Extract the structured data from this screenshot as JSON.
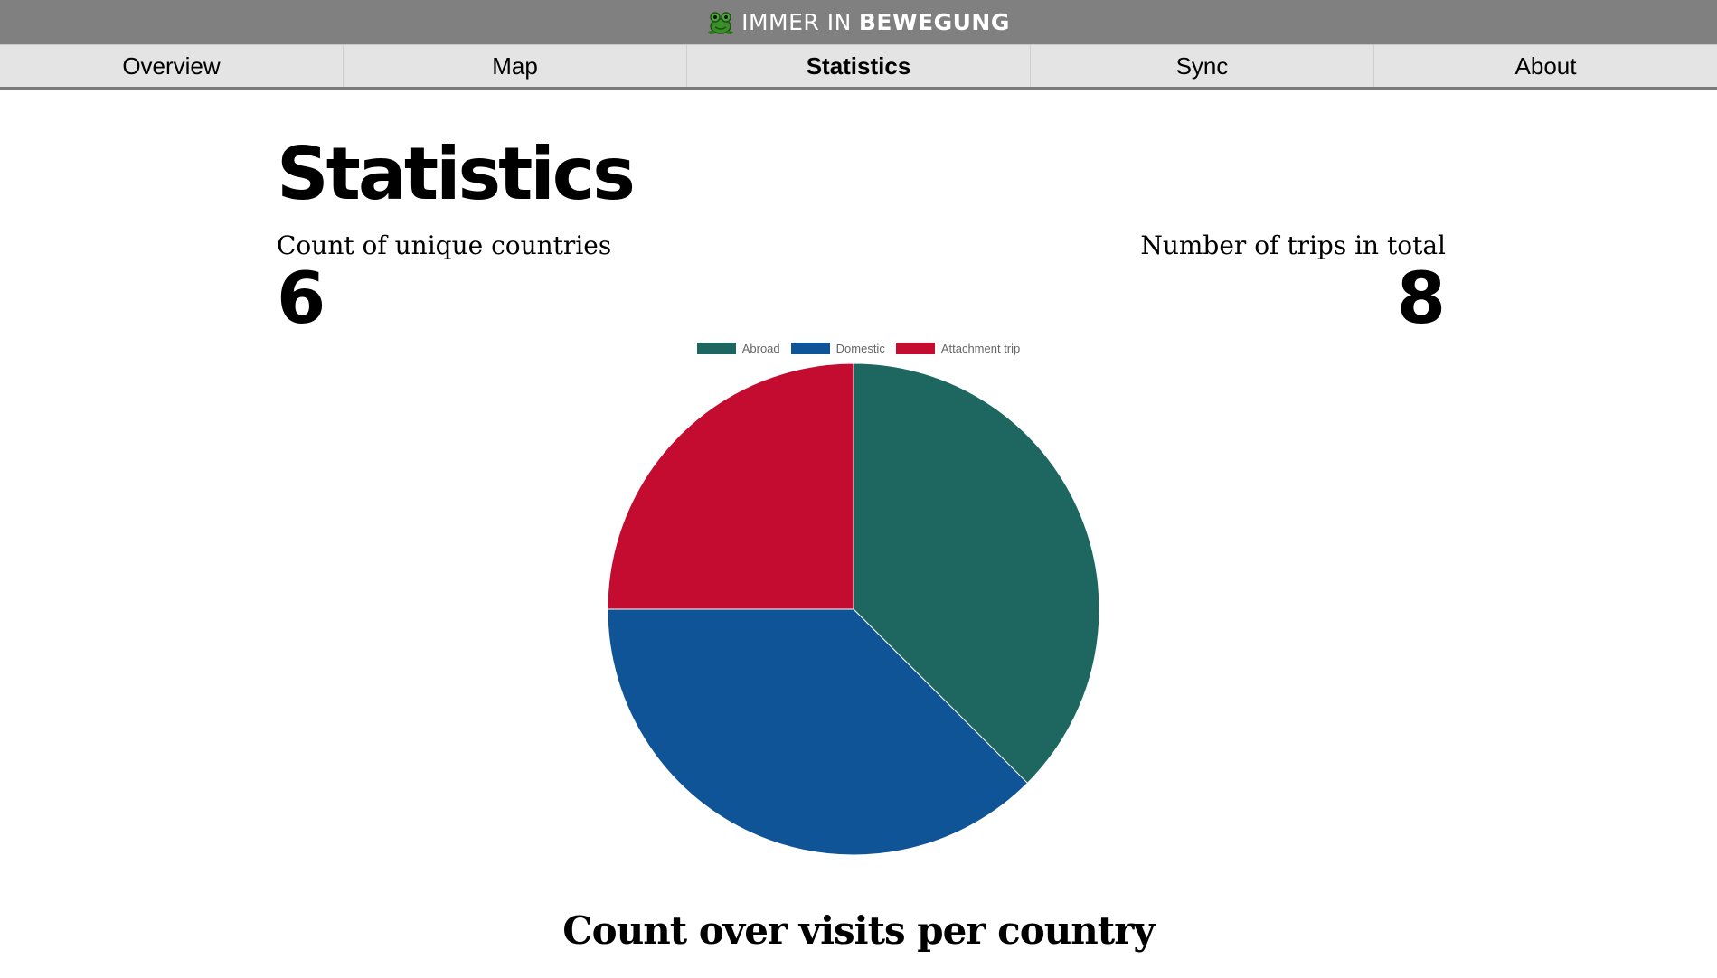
{
  "header": {
    "logo_icon": "frog-icon",
    "brand_part1": "IMMER IN",
    "brand_part2": "BEWEGUNG"
  },
  "nav": {
    "tabs": [
      {
        "label": "Overview",
        "active": false
      },
      {
        "label": "Map",
        "active": false
      },
      {
        "label": "Statistics",
        "active": true
      },
      {
        "label": "Sync",
        "active": false
      },
      {
        "label": "About",
        "active": false
      }
    ]
  },
  "main": {
    "title": "Statistics",
    "stats": {
      "countries_label": "Count of unique countries",
      "countries_value": "6",
      "trips_label": "Number of trips in total",
      "trips_value": "8"
    },
    "section_title": "Count over visits per country"
  },
  "chart_data": {
    "type": "pie",
    "title": "",
    "legend_position": "top",
    "categories": [
      "Abroad",
      "Domestic",
      "Attachment trip"
    ],
    "values": [
      3,
      3,
      2
    ],
    "colors": [
      "#1e6760",
      "#0e5496",
      "#c40c30"
    ]
  }
}
